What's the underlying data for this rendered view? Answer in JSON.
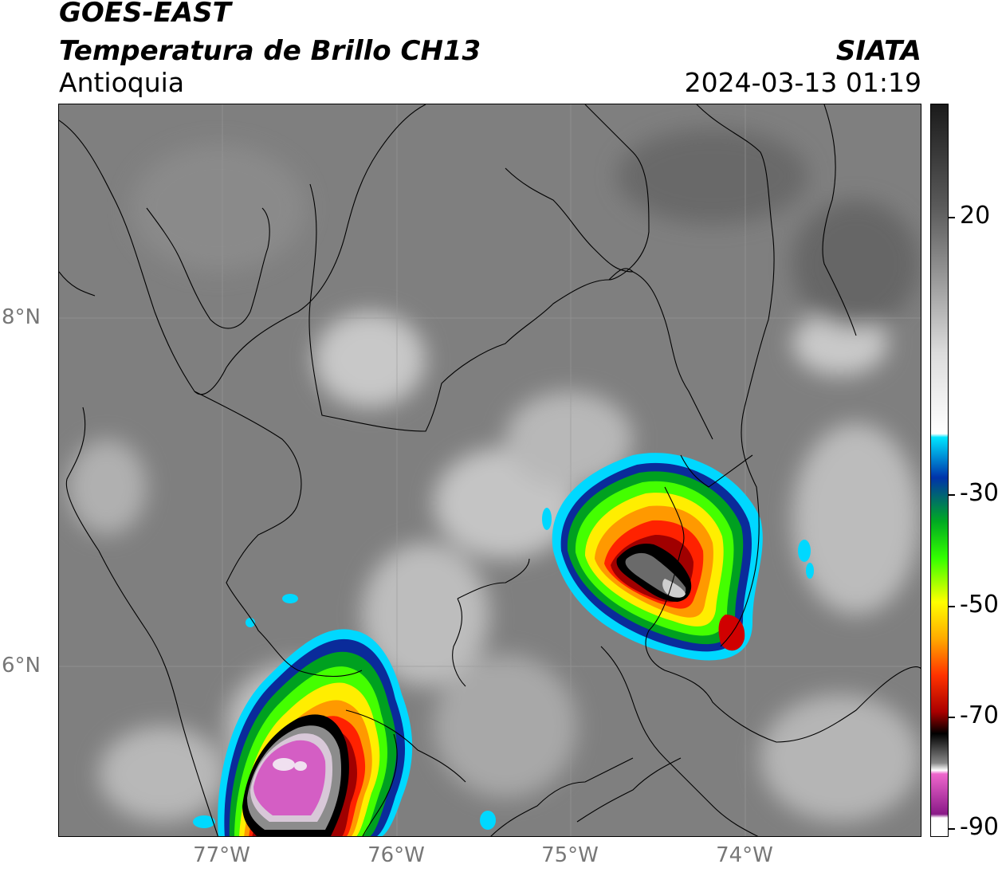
{
  "header": {
    "title": "GOES-EAST",
    "subtitle": "Temperatura de Brillo CH13",
    "region": "Antioquia",
    "agency": "SIATA",
    "timestamp": "2024-03-13 01:19"
  },
  "axes": {
    "lat_labels": [
      "8°N",
      "6°N"
    ],
    "lon_labels": [
      "77°W",
      "76°W",
      "75°W",
      "74°W"
    ]
  },
  "colorbar": {
    "labels": [
      "20",
      "-30",
      "-50",
      "-70",
      "-90"
    ],
    "stops": [
      "#1a1a1a",
      "#5a5a5a",
      "#9a9a9a",
      "#dcdcdc",
      "#ffffff",
      "#00e5ff",
      "#0033aa",
      "#00aa22",
      "#33ff00",
      "#ffff00",
      "#ffaa00",
      "#ff3300",
      "#aa0000",
      "#000000",
      "#888888",
      "#ffffff",
      "#ee66cc",
      "#8a1a88",
      "#ffffff"
    ]
  },
  "map": {
    "background_color": "#7e7e7e",
    "gridlines": true,
    "features": [
      "coastline",
      "department-borders",
      "storm-cell-east",
      "storm-cell-southwest"
    ]
  }
}
